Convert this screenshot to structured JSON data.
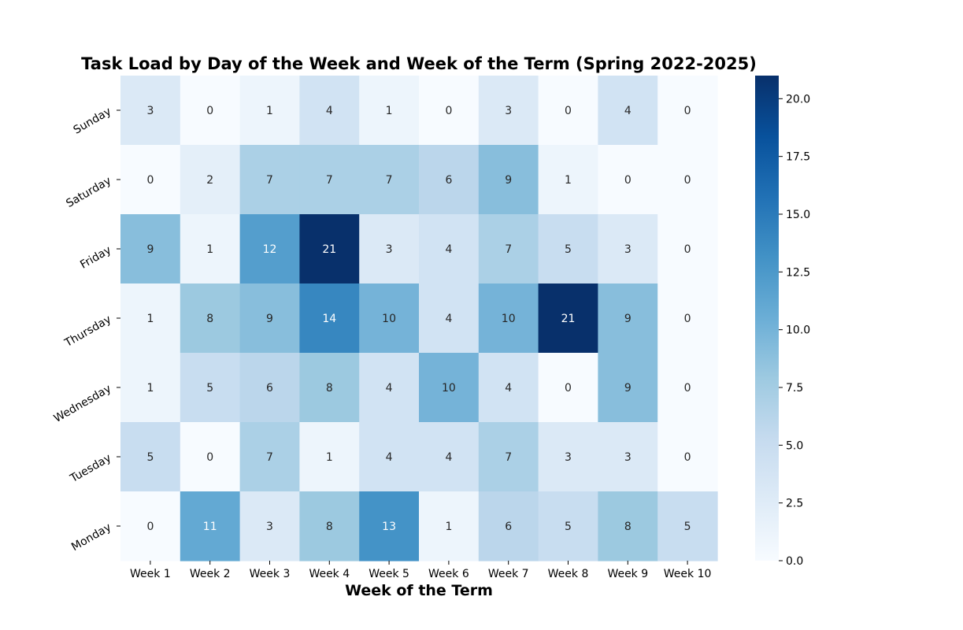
{
  "chart_data": {
    "type": "heatmap",
    "title": "Task Load by Day of the Week and Week of the Term (Spring 2022-2025)",
    "xlabel": "Week of the Term",
    "ylabel": "",
    "x_categories": [
      "Week 1",
      "Week 2",
      "Week 3",
      "Week 4",
      "Week 5",
      "Week 6",
      "Week 7",
      "Week 8",
      "Week 9",
      "Week 10"
    ],
    "y_categories": [
      "Sunday",
      "Saturday",
      "Friday",
      "Thursday",
      "Wednesday",
      "Tuesday",
      "Monday"
    ],
    "values": [
      [
        3,
        0,
        1,
        4,
        1,
        0,
        3,
        0,
        4,
        0
      ],
      [
        0,
        2,
        7,
        7,
        7,
        6,
        9,
        1,
        0,
        0
      ],
      [
        9,
        1,
        12,
        21,
        3,
        4,
        7,
        5,
        3,
        0
      ],
      [
        1,
        8,
        9,
        14,
        10,
        4,
        10,
        21,
        9,
        0
      ],
      [
        1,
        5,
        6,
        8,
        4,
        10,
        4,
        0,
        9,
        0
      ],
      [
        5,
        0,
        7,
        1,
        4,
        4,
        7,
        3,
        3,
        0
      ],
      [
        0,
        11,
        3,
        8,
        13,
        1,
        6,
        5,
        8,
        5
      ]
    ],
    "colormap": "Blues",
    "vmin": 0,
    "vmax": 21,
    "colorbar_ticks": [
      "0.0",
      "2.5",
      "5.0",
      "7.5",
      "10.0",
      "12.5",
      "15.0",
      "17.5",
      "20.0"
    ],
    "annotated": true,
    "grid": false
  }
}
